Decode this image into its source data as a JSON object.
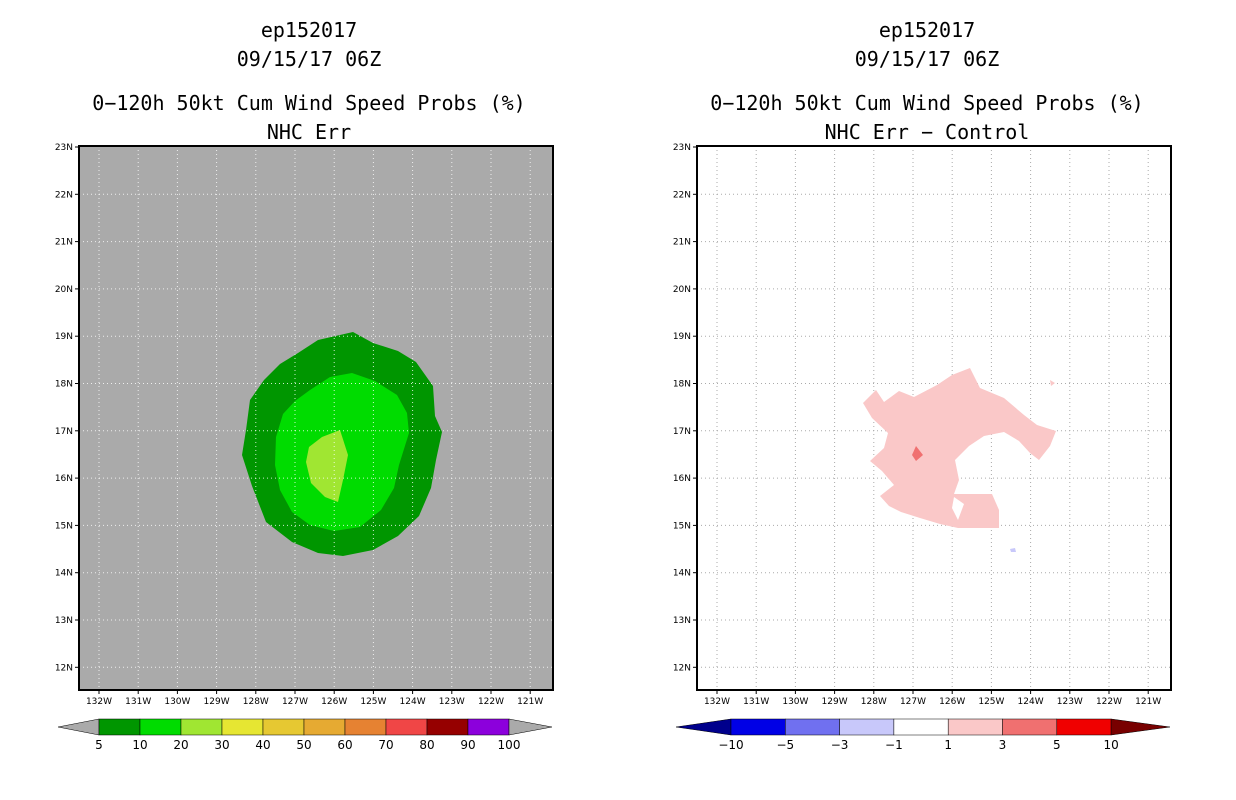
{
  "panels": [
    {
      "id": "left",
      "storm_id": "ep152017",
      "datetime": "09/15/17 06Z",
      "product": "0−120h 50kt Cum Wind Speed Probs (%)",
      "subtitle": "NHC Err",
      "background_color": "#aaaaaa",
      "lat_labels": [
        "23N",
        "22N",
        "21N",
        "20N",
        "19N",
        "18N",
        "17N",
        "16N",
        "15N",
        "14N",
        "13N",
        "12N"
      ],
      "lon_labels": [
        "132W",
        "131W",
        "130W",
        "129W",
        "128W",
        "127W",
        "126W",
        "125W",
        "124W",
        "123W",
        "122W",
        "121W"
      ],
      "colorbar": {
        "labels": [
          "5",
          "10",
          "20",
          "30",
          "40",
          "50",
          "60",
          "70",
          "80",
          "90",
          "100"
        ],
        "colors": [
          "#009600",
          "#00dc00",
          "#a0e632",
          "#e6e632",
          "#e6c832",
          "#e6aa32",
          "#e68232",
          "#f04646",
          "#960000",
          "#8c00dc"
        ],
        "end_color": "#aaaaaa"
      }
    },
    {
      "id": "right",
      "storm_id": "ep152017",
      "datetime": "09/15/17 06Z",
      "product": "0−120h 50kt Cum Wind Speed Probs (%)",
      "subtitle": "NHC Err − Control",
      "background_color": "#ffffff",
      "lat_labels": [
        "23N",
        "22N",
        "21N",
        "20N",
        "19N",
        "18N",
        "17N",
        "16N",
        "15N",
        "14N",
        "13N",
        "12N"
      ],
      "lon_labels": [
        "132W",
        "131W",
        "130W",
        "129W",
        "128W",
        "127W",
        "126W",
        "125W",
        "124W",
        "123W",
        "122W",
        "121W"
      ],
      "colorbar": {
        "labels": [
          "−10",
          "−5",
          "−3",
          "−1",
          "1",
          "3",
          "5",
          "10"
        ],
        "colors": [
          "#0000e6",
          "#7070f0",
          "#c8c8fa",
          "#ffffff",
          "#fac8c8",
          "#f07070",
          "#f00000"
        ],
        "low_color": "#00008c",
        "high_color": "#780000"
      }
    }
  ]
}
